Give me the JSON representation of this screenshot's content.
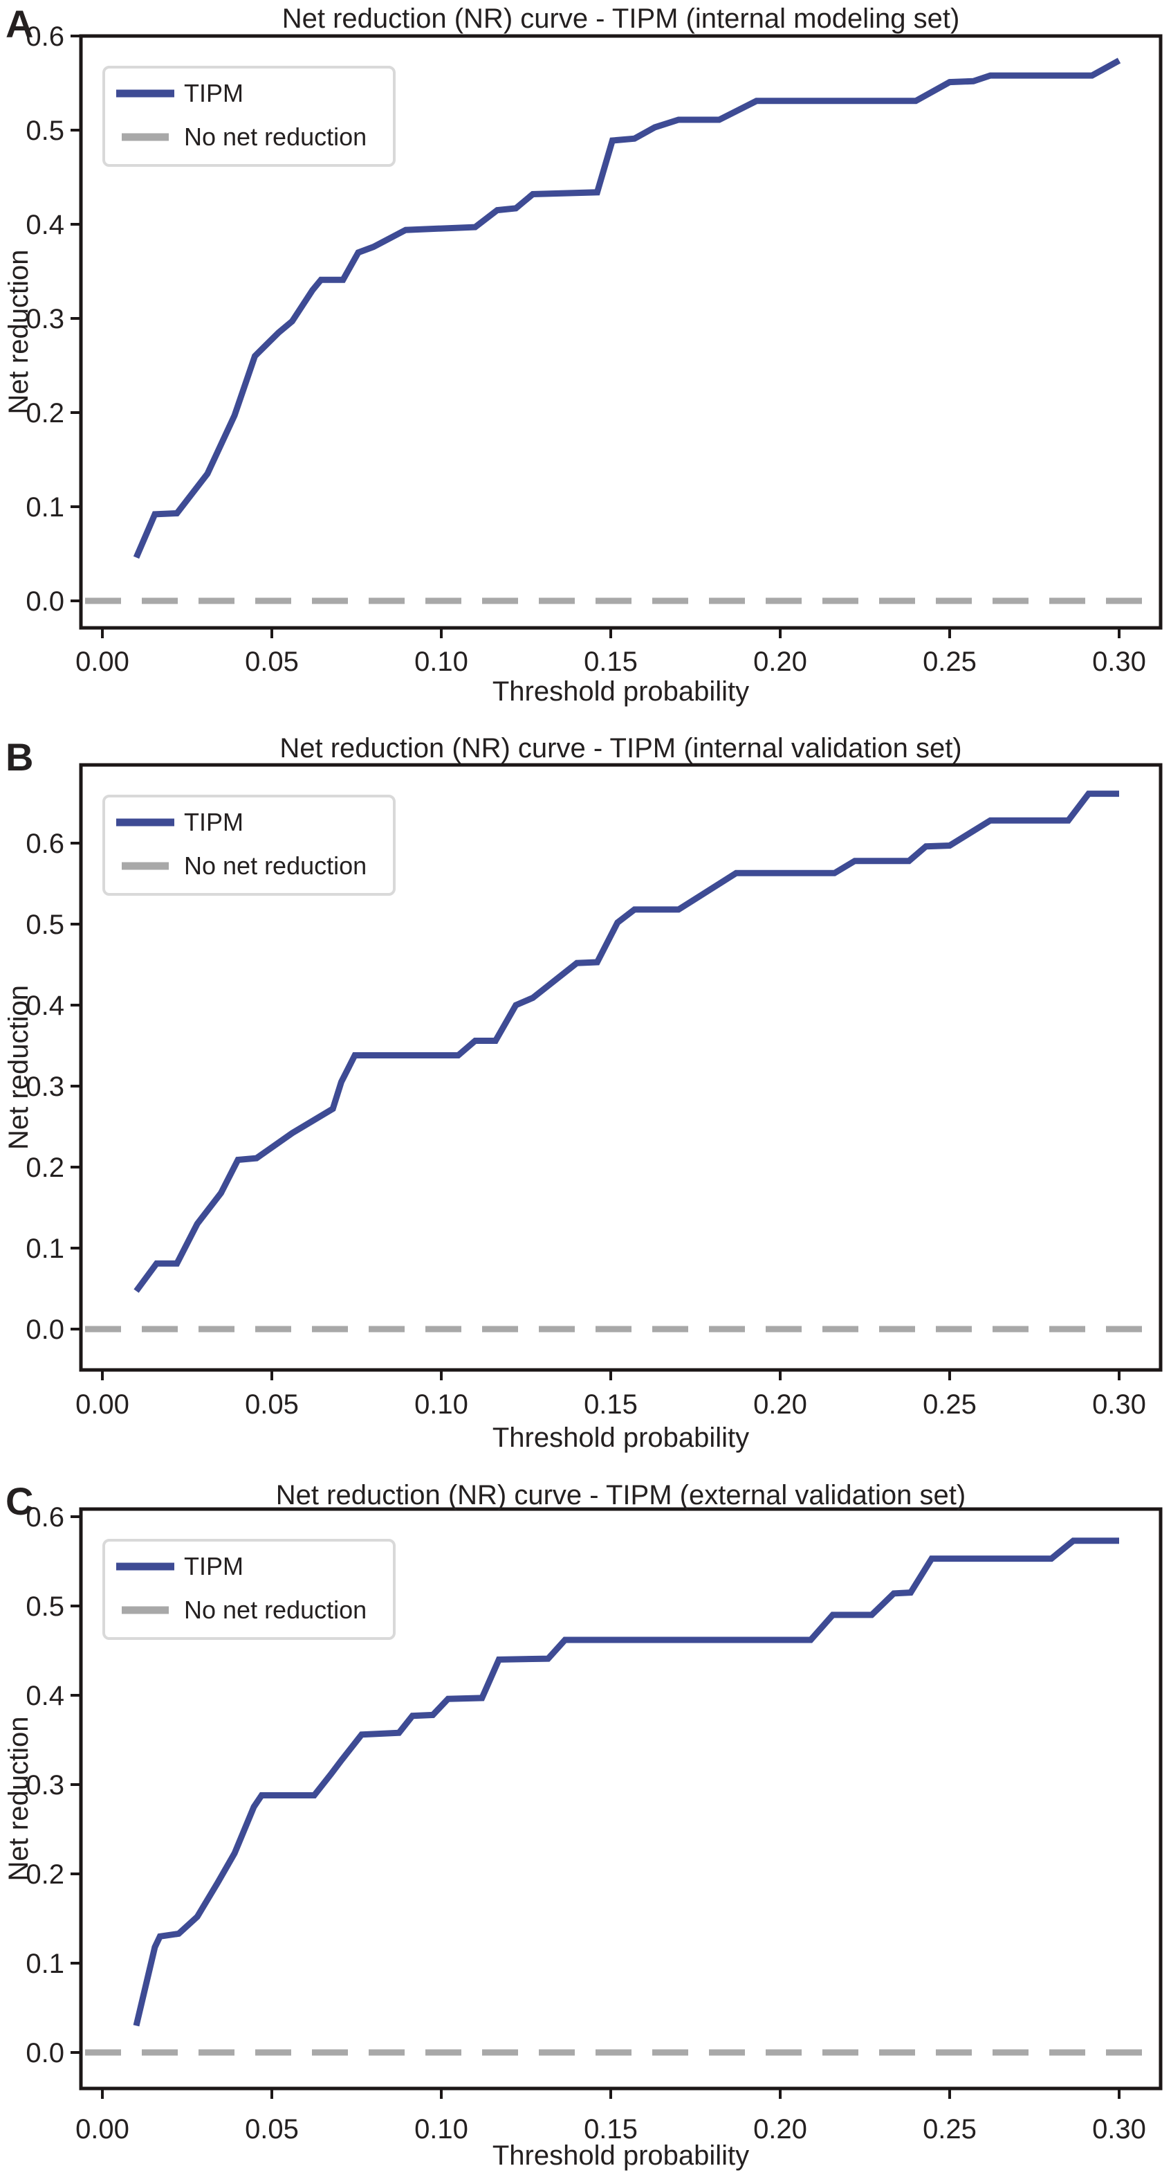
{
  "colors": {
    "tipm": "#3e4b94",
    "no_net_reduction": "#a8a8a8",
    "axis": "#1c1717",
    "text": "#242020",
    "legend_border": "#d9d9d9",
    "background": "#ffffff"
  },
  "axes": {
    "x_tick_labels": [
      "0.00",
      "0.05",
      "0.10",
      "0.15",
      "0.20",
      "0.25",
      "0.30"
    ],
    "y_tick_labels": [
      "0.0",
      "0.1",
      "0.2",
      "0.3",
      "0.4",
      "0.5",
      "0.6"
    ]
  },
  "legend": {
    "items": [
      {
        "label": "TIPM",
        "style": "solid",
        "color": "#3e4b94"
      },
      {
        "label": "No net reduction",
        "style": "dashed",
        "color": "#a8a8a8"
      }
    ],
    "position": "upper-left"
  },
  "chart_data": [
    {
      "type": "line",
      "panel_letter": "A",
      "title": "Net reduction (NR) curve - TIPM (internal modeling set)",
      "xlabel": "Threshold probability",
      "ylabel": "Net reduction",
      "xlim": [
        -0.006,
        0.312
      ],
      "ylim": [
        -0.029,
        0.6
      ],
      "grid": false,
      "legend_position": "upper-left",
      "series": [
        {
          "name": "TIPM",
          "style": "solid",
          "points": [
            [
              0.01,
              0.046
            ],
            [
              0.0155,
              0.092
            ],
            [
              0.022,
              0.093
            ],
            [
              0.031,
              0.135
            ],
            [
              0.039,
              0.197
            ],
            [
              0.045,
              0.26
            ],
            [
              0.052,
              0.285
            ],
            [
              0.056,
              0.297
            ],
            [
              0.062,
              0.33
            ],
            [
              0.0645,
              0.341
            ],
            [
              0.071,
              0.341
            ],
            [
              0.0755,
              0.37
            ],
            [
              0.08,
              0.376
            ],
            [
              0.0895,
              0.394
            ],
            [
              0.11,
              0.397
            ],
            [
              0.1165,
              0.415
            ],
            [
              0.122,
              0.417
            ],
            [
              0.127,
              0.432
            ],
            [
              0.146,
              0.434
            ],
            [
              0.1505,
              0.489
            ],
            [
              0.157,
              0.491
            ],
            [
              0.163,
              0.503
            ],
            [
              0.17,
              0.511
            ],
            [
              0.182,
              0.511
            ],
            [
              0.193,
              0.531
            ],
            [
              0.24,
              0.531
            ],
            [
              0.25,
              0.551
            ],
            [
              0.257,
              0.552
            ],
            [
              0.262,
              0.558
            ],
            [
              0.292,
              0.558
            ],
            [
              0.3,
              0.574
            ]
          ]
        },
        {
          "name": "No net reduction",
          "style": "dashed",
          "y": 0.0,
          "points": [
            [
              0.0,
              0.0
            ],
            [
              0.3,
              0.0
            ]
          ]
        }
      ]
    },
    {
      "type": "line",
      "panel_letter": "B",
      "title": "Net reduction (NR) curve - TIPM (internal validation set)",
      "xlabel": "Threshold probability",
      "ylabel": "Net reduction",
      "xlim": [
        -0.006,
        0.312
      ],
      "ylim": [
        -0.05,
        0.691
      ],
      "grid": false,
      "legend_position": "upper-left",
      "series": [
        {
          "name": "TIPM",
          "style": "solid",
          "points": [
            [
              0.01,
              0.047
            ],
            [
              0.016,
              0.081
            ],
            [
              0.022,
              0.081
            ],
            [
              0.028,
              0.13
            ],
            [
              0.035,
              0.168
            ],
            [
              0.04,
              0.209
            ],
            [
              0.0455,
              0.211
            ],
            [
              0.056,
              0.242
            ],
            [
              0.068,
              0.272
            ],
            [
              0.0705,
              0.305
            ],
            [
              0.0745,
              0.338
            ],
            [
              0.105,
              0.338
            ],
            [
              0.11,
              0.356
            ],
            [
              0.116,
              0.356
            ],
            [
              0.122,
              0.4
            ],
            [
              0.127,
              0.409
            ],
            [
              0.14,
              0.452
            ],
            [
              0.146,
              0.453
            ],
            [
              0.152,
              0.502
            ],
            [
              0.157,
              0.518
            ],
            [
              0.17,
              0.518
            ],
            [
              0.187,
              0.563
            ],
            [
              0.216,
              0.563
            ],
            [
              0.222,
              0.578
            ],
            [
              0.238,
              0.578
            ],
            [
              0.243,
              0.596
            ],
            [
              0.25,
              0.597
            ],
            [
              0.262,
              0.628
            ],
            [
              0.285,
              0.628
            ],
            [
              0.291,
              0.661
            ],
            [
              0.3,
              0.661
            ]
          ]
        },
        {
          "name": "No net reduction",
          "style": "dashed",
          "y": 0.0,
          "points": [
            [
              0.0,
              0.0
            ],
            [
              0.3,
              0.0
            ]
          ]
        }
      ]
    },
    {
      "type": "line",
      "panel_letter": "C",
      "title": "Net reduction (NR) curve - TIPM (external validation set)",
      "xlabel": "Threshold probability",
      "ylabel": "Net reduction",
      "xlim": [
        -0.006,
        0.312
      ],
      "ylim": [
        -0.04,
        0.609
      ],
      "grid": false,
      "legend_position": "upper-left",
      "series": [
        {
          "name": "TIPM",
          "style": "solid",
          "points": [
            [
              0.01,
              0.03
            ],
            [
              0.0155,
              0.118
            ],
            [
              0.017,
              0.13
            ],
            [
              0.0225,
              0.133
            ],
            [
              0.028,
              0.152
            ],
            [
              0.034,
              0.19
            ],
            [
              0.039,
              0.223
            ],
            [
              0.0447,
              0.275
            ],
            [
              0.047,
              0.288
            ],
            [
              0.0625,
              0.288
            ],
            [
              0.0675,
              0.312
            ],
            [
              0.0705,
              0.327
            ],
            [
              0.0765,
              0.356
            ],
            [
              0.0875,
              0.358
            ],
            [
              0.0915,
              0.377
            ],
            [
              0.0975,
              0.378
            ],
            [
              0.102,
              0.396
            ],
            [
              0.112,
              0.397
            ],
            [
              0.117,
              0.44
            ],
            [
              0.1315,
              0.441
            ],
            [
              0.1365,
              0.462
            ],
            [
              0.209,
              0.462
            ],
            [
              0.2155,
              0.49
            ],
            [
              0.227,
              0.49
            ],
            [
              0.2335,
              0.514
            ],
            [
              0.2385,
              0.515
            ],
            [
              0.2447,
              0.553
            ],
            [
              0.28,
              0.553
            ],
            [
              0.2865,
              0.573
            ],
            [
              0.3,
              0.573
            ]
          ]
        },
        {
          "name": "No net reduction",
          "style": "dashed",
          "y": 0.0,
          "points": [
            [
              0.0,
              0.0
            ],
            [
              0.3,
              0.0
            ]
          ]
        }
      ]
    }
  ]
}
